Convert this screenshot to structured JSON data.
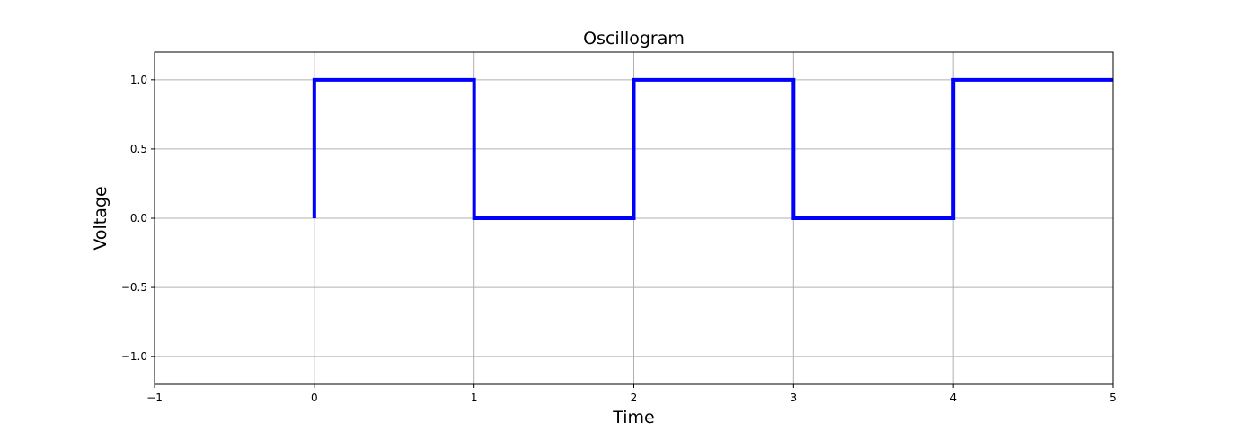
{
  "chart_data": {
    "type": "line",
    "title": "Oscillogram",
    "xlabel": "Time",
    "ylabel": "Voltage",
    "xlim": [
      -1,
      5
    ],
    "ylim": [
      -1.2,
      1.2
    ],
    "xticks": [
      -1,
      0,
      1,
      2,
      3,
      4,
      5
    ],
    "xtick_labels": [
      "−1",
      "0",
      "1",
      "2",
      "3",
      "4",
      "5"
    ],
    "yticks": [
      -1.0,
      -0.5,
      0.0,
      0.5,
      1.0
    ],
    "ytick_labels": [
      "−1.0",
      "−0.5",
      "0.0",
      "0.5",
      "1.0"
    ],
    "grid": true,
    "series": [
      {
        "color": "#0000ff",
        "step": true,
        "x": [
          0,
          0,
          1,
          1,
          2,
          2,
          3,
          3,
          4,
          4,
          5
        ],
        "y": [
          0,
          1,
          1,
          0,
          0,
          1,
          1,
          0,
          0,
          1,
          1
        ]
      }
    ]
  }
}
